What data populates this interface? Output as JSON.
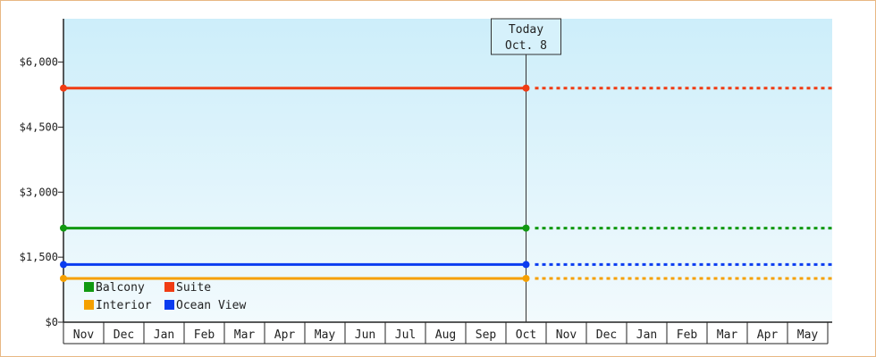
{
  "chart_data": {
    "type": "line",
    "title": "",
    "xlabel": "",
    "ylabel": "",
    "ylim": [
      0,
      7000
    ],
    "y_ticks": [
      0,
      1500,
      3000,
      4500,
      6000
    ],
    "y_tick_labels": [
      "$0",
      "$1,500",
      "$3,000",
      "$4,500",
      "$6,000"
    ],
    "categories": [
      "Nov",
      "Dec",
      "Jan",
      "Feb",
      "Mar",
      "Apr",
      "May",
      "Jun",
      "Jul",
      "Aug",
      "Sep",
      "Oct",
      "Nov",
      "Dec",
      "Jan",
      "Feb",
      "Mar",
      "Apr",
      "May"
    ],
    "today_marker": {
      "line1": "Today",
      "line2": "Oct. 8",
      "category_index": 11
    },
    "series": [
      {
        "name": "Suite",
        "color": "#f03c14",
        "value": 5400,
        "start_index": 0,
        "end_index": 11
      },
      {
        "name": "Balcony",
        "color": "#119911",
        "value": 2170,
        "start_index": 0,
        "end_index": 11
      },
      {
        "name": "Ocean View",
        "color": "#0a3cf0",
        "value": 1330,
        "start_index": 0,
        "end_index": 11
      },
      {
        "name": "Interior",
        "color": "#f5a000",
        "value": 1010,
        "start_index": 0,
        "end_index": 11
      }
    ],
    "legend": [
      {
        "label": "Balcony",
        "color": "#119911"
      },
      {
        "label": "Suite",
        "color": "#f03c14"
      },
      {
        "label": "Interior",
        "color": "#f5a000"
      },
      {
        "label": "Ocean View",
        "color": "#0a3cf0"
      }
    ],
    "legend_position": "bottom-left",
    "background_gradient": [
      "#cdeefa",
      "#f2fafd"
    ]
  }
}
